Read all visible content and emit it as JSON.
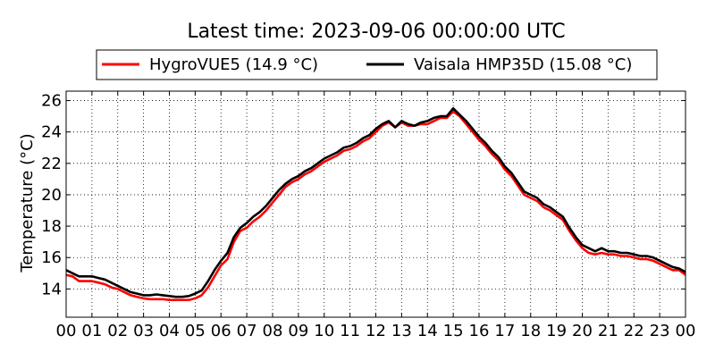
{
  "chart_data": {
    "type": "line",
    "title": "Latest time: 2023-09-06 00:00:00 UTC",
    "xlabel": "",
    "ylabel": "Temperature (°C)",
    "xlim": [
      0,
      24
    ],
    "ylim": [
      12.2,
      26.6
    ],
    "xticks": [
      0,
      1,
      2,
      3,
      4,
      5,
      6,
      7,
      8,
      9,
      10,
      11,
      12,
      13,
      14,
      15,
      16,
      17,
      18,
      19,
      20,
      21,
      22,
      23,
      24
    ],
    "xtick_labels": [
      "00",
      "01",
      "02",
      "03",
      "04",
      "05",
      "06",
      "07",
      "08",
      "09",
      "10",
      "11",
      "12",
      "13",
      "14",
      "15",
      "16",
      "17",
      "18",
      "19",
      "20",
      "21",
      "22",
      "23",
      "00"
    ],
    "yticks": [
      14,
      16,
      18,
      20,
      22,
      24,
      26
    ],
    "ytick_labels": [
      "14",
      "16",
      "18",
      "20",
      "22",
      "24",
      "26"
    ],
    "grid": true,
    "legend_placement": "top-center",
    "series": [
      {
        "name": "HygroVUE5 (14.9 °C)",
        "color": "#ff0000",
        "x": [
          0,
          0.25,
          0.5,
          0.75,
          1,
          1.25,
          1.5,
          1.75,
          2,
          2.25,
          2.5,
          2.75,
          3,
          3.25,
          3.5,
          3.75,
          4,
          4.25,
          4.5,
          4.75,
          5,
          5.25,
          5.5,
          5.75,
          6,
          6.25,
          6.5,
          6.75,
          7,
          7.25,
          7.5,
          7.75,
          8,
          8.25,
          8.5,
          8.75,
          9,
          9.25,
          9.5,
          9.75,
          10,
          10.25,
          10.5,
          10.75,
          11,
          11.25,
          11.5,
          11.75,
          12,
          12.25,
          12.5,
          12.75,
          13,
          13.25,
          13.5,
          13.75,
          14,
          14.25,
          14.5,
          14.75,
          15,
          15.25,
          15.5,
          15.75,
          16,
          16.25,
          16.5,
          16.75,
          17,
          17.25,
          17.5,
          17.75,
          18,
          18.25,
          18.5,
          18.75,
          19,
          19.25,
          19.5,
          19.75,
          20,
          20.25,
          20.5,
          20.75,
          21,
          21.25,
          21.5,
          21.75,
          22,
          22.25,
          22.5,
          22.75,
          23,
          23.25,
          23.5,
          23.75,
          24
        ],
        "y": [
          14.9,
          14.8,
          14.5,
          14.5,
          14.5,
          14.4,
          14.3,
          14.1,
          14.0,
          13.8,
          13.6,
          13.5,
          13.4,
          13.35,
          13.35,
          13.35,
          13.3,
          13.3,
          13.3,
          13.3,
          13.4,
          13.6,
          14.1,
          14.8,
          15.5,
          15.9,
          17.0,
          17.7,
          17.9,
          18.3,
          18.6,
          19.0,
          19.5,
          20.0,
          20.5,
          20.8,
          21.0,
          21.3,
          21.5,
          21.8,
          22.1,
          22.3,
          22.5,
          22.8,
          22.9,
          23.1,
          23.4,
          23.6,
          24.0,
          24.4,
          24.6,
          24.3,
          24.6,
          24.4,
          24.4,
          24.5,
          24.5,
          24.7,
          24.9,
          24.9,
          25.3,
          25.0,
          24.5,
          24.0,
          23.5,
          23.1,
          22.6,
          22.2,
          21.6,
          21.2,
          20.6,
          20.0,
          19.8,
          19.6,
          19.2,
          19.0,
          18.7,
          18.4,
          17.7,
          17.1,
          16.6,
          16.3,
          16.2,
          16.3,
          16.2,
          16.2,
          16.1,
          16.1,
          16.0,
          15.9,
          15.9,
          15.8,
          15.6,
          15.4,
          15.2,
          15.2,
          14.9
        ]
      },
      {
        "name": "Vaisala HMP35D (15.08 °C)",
        "color": "#000000",
        "x": [
          0,
          0.25,
          0.5,
          0.75,
          1,
          1.25,
          1.5,
          1.75,
          2,
          2.25,
          2.5,
          2.75,
          3,
          3.25,
          3.5,
          3.75,
          4,
          4.25,
          4.5,
          4.75,
          5,
          5.25,
          5.5,
          5.75,
          6,
          6.25,
          6.5,
          6.75,
          7,
          7.25,
          7.5,
          7.75,
          8,
          8.25,
          8.5,
          8.75,
          9,
          9.25,
          9.5,
          9.75,
          10,
          10.25,
          10.5,
          10.75,
          11,
          11.25,
          11.5,
          11.75,
          12,
          12.25,
          12.5,
          12.75,
          13,
          13.25,
          13.5,
          13.75,
          14,
          14.25,
          14.5,
          14.75,
          15,
          15.25,
          15.5,
          15.75,
          16,
          16.25,
          16.5,
          16.75,
          17,
          17.25,
          17.5,
          17.75,
          18,
          18.25,
          18.5,
          18.75,
          19,
          19.25,
          19.5,
          19.75,
          20,
          20.25,
          20.5,
          20.75,
          21,
          21.25,
          21.5,
          21.75,
          22,
          22.25,
          22.5,
          22.75,
          23,
          23.25,
          23.5,
          23.75,
          24
        ],
        "y": [
          15.2,
          15.0,
          14.8,
          14.8,
          14.8,
          14.7,
          14.6,
          14.4,
          14.2,
          14.0,
          13.8,
          13.7,
          13.6,
          13.6,
          13.65,
          13.6,
          13.55,
          13.5,
          13.5,
          13.55,
          13.7,
          13.9,
          14.5,
          15.2,
          15.8,
          16.3,
          17.3,
          17.9,
          18.2,
          18.6,
          18.9,
          19.3,
          19.8,
          20.3,
          20.7,
          21.0,
          21.2,
          21.5,
          21.7,
          22.0,
          22.3,
          22.5,
          22.7,
          23.0,
          23.1,
          23.3,
          23.6,
          23.8,
          24.2,
          24.5,
          24.7,
          24.3,
          24.7,
          24.5,
          24.4,
          24.6,
          24.7,
          24.9,
          25.0,
          25.0,
          25.5,
          25.1,
          24.7,
          24.2,
          23.7,
          23.3,
          22.8,
          22.4,
          21.8,
          21.4,
          20.8,
          20.2,
          20.0,
          19.8,
          19.4,
          19.2,
          18.9,
          18.6,
          17.9,
          17.3,
          16.8,
          16.6,
          16.4,
          16.6,
          16.4,
          16.4,
          16.3,
          16.3,
          16.2,
          16.1,
          16.1,
          16.0,
          15.8,
          15.6,
          15.4,
          15.3,
          15.08
        ]
      }
    ]
  }
}
